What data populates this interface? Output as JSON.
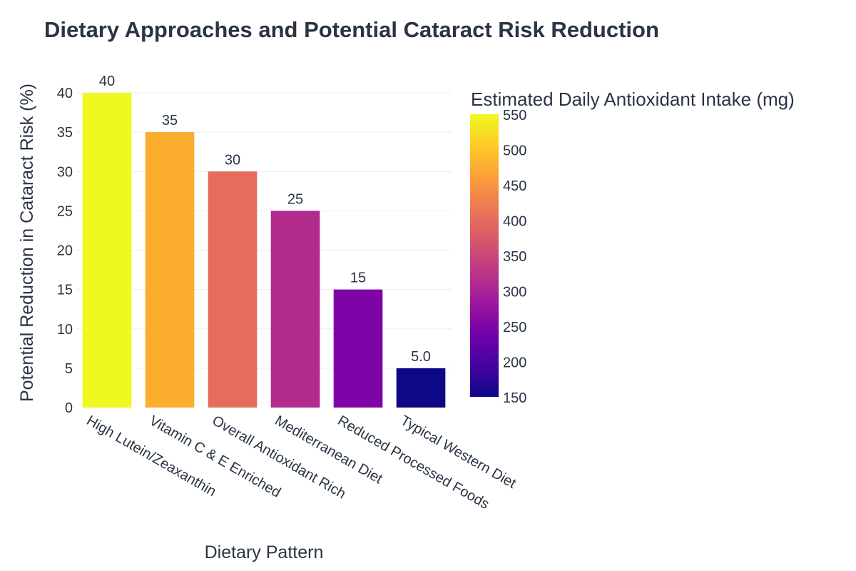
{
  "chart_data": {
    "type": "bar",
    "title": "Dietary Approaches and Potential Cataract Risk Reduction",
    "xlabel": "Dietary Pattern",
    "ylabel": "Potential Reduction in Cataract Risk (%)",
    "categories": [
      "High Lutein/Zeaxanthin",
      "Vitamin C & E Enriched",
      "Overall Antioxidant Rich",
      "Mediterranean Diet",
      "Reduced Processed Foods",
      "Typical Western Diet"
    ],
    "values": [
      40,
      35,
      30,
      25,
      15,
      5
    ],
    "value_labels": [
      "40",
      "35",
      "30",
      "25",
      "15",
      "5.0"
    ],
    "color_values": [
      550,
      500,
      400,
      325,
      275,
      150
    ],
    "colors": [
      "#eff821",
      "#fbad2e",
      "#e66c5c",
      "#b22b8f",
      "#7f04a8",
      "#0e0887"
    ],
    "ylim": [
      0,
      40
    ],
    "yticks": [
      "0",
      "5",
      "10",
      "15",
      "20",
      "25",
      "30",
      "35",
      "40"
    ],
    "colorbar": {
      "title": "Estimated Daily Antioxidant Intake (mg)",
      "range": [
        150,
        550
      ],
      "ticks": [
        "150",
        "200",
        "250",
        "300",
        "350",
        "400",
        "450",
        "500",
        "550"
      ]
    },
    "grid": true
  }
}
